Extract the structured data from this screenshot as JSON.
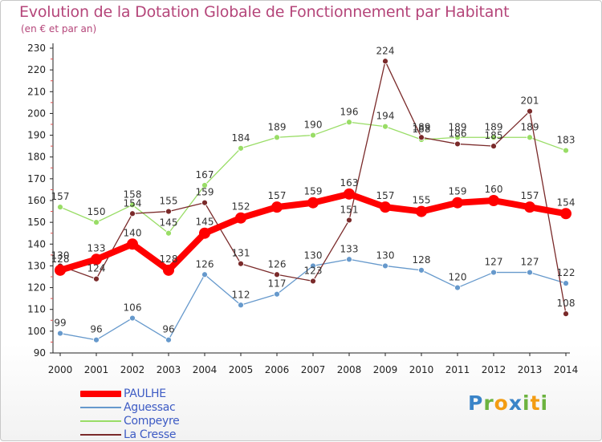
{
  "page": {
    "title": "Evolution de la Dotation Globale de Fonctionnement par Habitant",
    "subtitle": "(en € et par an)",
    "logo": [
      "P",
      "r",
      "o",
      "x",
      "i",
      "t",
      "i"
    ]
  },
  "colors": {
    "title": "#b5467a",
    "paulhe": "#ff0000",
    "aguessac": "#6699cc",
    "compeyre": "#99dd66",
    "lacresse": "#7a2a2a",
    "legend_text": "#3d5bc4",
    "logo": [
      "#3a84c8",
      "#6cb33f",
      "#f39c12",
      "#3a84c8",
      "#6cb33f",
      "#f39c12",
      "#6cb33f"
    ]
  },
  "chart_data": {
    "type": "line",
    "title": "Evolution de la Dotation Globale de Fonctionnement par Habitant",
    "subtitle": "(en € et par an)",
    "x": [
      "2000",
      "2001",
      "2002",
      "2003",
      "2004",
      "2005",
      "2006",
      "2007",
      "2008",
      "2009",
      "2010",
      "2011",
      "2012",
      "2013",
      "2014"
    ],
    "yticks": [
      90,
      100,
      110,
      120,
      130,
      140,
      150,
      160,
      170,
      180,
      190,
      200,
      210,
      220,
      230
    ],
    "ylim": [
      90,
      230
    ],
    "grid": false,
    "legend_position": "bottom-left",
    "series": [
      {
        "name": "PAULHE",
        "key": "paulhe",
        "values": [
          128,
          133,
          140,
          128,
          145,
          152,
          157,
          159,
          163,
          157,
          155,
          159,
          160,
          157,
          154
        ]
      },
      {
        "name": "Aguessac",
        "key": "aguessac",
        "values": [
          99,
          96,
          106,
          96,
          126,
          112,
          117,
          130,
          133,
          130,
          128,
          120,
          127,
          127,
          122
        ]
      },
      {
        "name": "Compeyre",
        "key": "compeyre",
        "values": [
          157,
          150,
          158,
          145,
          167,
          184,
          189,
          190,
          196,
          194,
          188,
          189,
          189,
          189,
          183
        ]
      },
      {
        "name": "La Cresse",
        "key": "lacresse",
        "values": [
          130,
          124,
          154,
          155,
          159,
          131,
          126,
          123,
          151,
          224,
          189,
          186,
          185,
          201,
          108
        ]
      }
    ]
  }
}
